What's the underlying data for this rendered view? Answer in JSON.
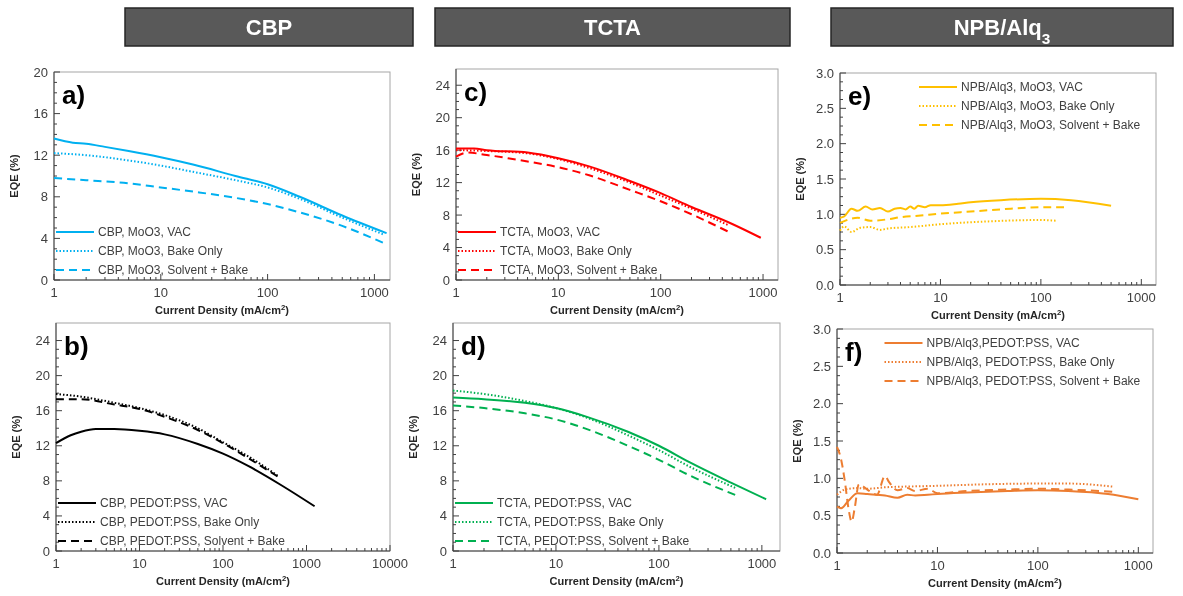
{
  "chart_data": [
    {
      "type": "line",
      "title": "CBP",
      "annotations": [
        "a)"
      ],
      "xlabel": "Current Density (mA/cm$^{2}$)",
      "ylabel": "EQE (%)",
      "log": "x",
      "xlim": [
        1,
        1400
      ],
      "xticks": [
        1,
        10,
        100,
        1000
      ],
      "ylim": [
        0,
        20
      ],
      "yticks": [
        0,
        4,
        8,
        12,
        16,
        20
      ],
      "legend": "bottom left",
      "series": [
        {
          "name": "CBP, MoO3, VAC",
          "color": "#00b0f0",
          "line_style": "solid",
          "x": [
            1,
            1.5,
            2,
            3,
            5,
            10,
            20,
            50,
            100,
            200,
            500,
            1300
          ],
          "values": [
            13.6,
            13.2,
            13.1,
            12.8,
            12.4,
            11.8,
            11.1,
            10.0,
            9.2,
            8.0,
            6.2,
            4.5
          ]
        },
        {
          "name": "CBP, MoO3, Bake Only",
          "color": "#00b0f0",
          "line_style": "dotted",
          "x": [
            1,
            2,
            5,
            10,
            20,
            50,
            100,
            200,
            500,
            1200
          ],
          "values": [
            12.2,
            12.0,
            11.5,
            11.0,
            10.4,
            9.6,
            8.9,
            7.8,
            6.0,
            4.4
          ]
        },
        {
          "name": "CBP, MoO3, Solvent + Bake",
          "color": "#00b0f0",
          "line_style": "dashed",
          "x": [
            1,
            2,
            5,
            10,
            20,
            50,
            100,
            200,
            500,
            1200
          ],
          "values": [
            9.8,
            9.6,
            9.3,
            8.9,
            8.5,
            7.9,
            7.3,
            6.5,
            5.2,
            3.6
          ]
        }
      ]
    },
    {
      "type": "line",
      "title": "TCTA",
      "annotations": [
        "c)"
      ],
      "xlabel": "Current Density (mA/cm$^{2}$)",
      "ylabel": "EQE (%)",
      "log": "x",
      "xlim": [
        1,
        1400
      ],
      "xticks": [
        1,
        10,
        100,
        1000
      ],
      "ylim": [
        0,
        26
      ],
      "yticks": [
        0,
        4,
        8,
        12,
        16,
        20,
        24
      ],
      "legend": "bottom left",
      "series": [
        {
          "name": "TCTA, MoO3, VAC",
          "color": "#ff0000",
          "line_style": "solid",
          "x": [
            1,
            1.5,
            2,
            5,
            10,
            20,
            50,
            100,
            200,
            500,
            950
          ],
          "values": [
            16.2,
            16.2,
            16.0,
            15.7,
            15.0,
            14.0,
            12.2,
            10.7,
            9.0,
            6.9,
            5.2
          ]
        },
        {
          "name": "TCTA, MoO3, Bake Only",
          "color": "#ff0000",
          "line_style": "dotted",
          "x": [
            1,
            2,
            5,
            10,
            20,
            50,
            100,
            200,
            450
          ],
          "values": [
            16.0,
            15.9,
            15.6,
            14.9,
            13.8,
            12.0,
            10.4,
            8.8,
            6.8
          ]
        },
        {
          "name": "TCTA, MoO3, Solvent + Bake",
          "color": "#ff0000",
          "line_style": "dashed",
          "x": [
            1,
            1.3,
            2,
            5,
            10,
            20,
            50,
            100,
            200,
            450
          ],
          "values": [
            15.2,
            15.7,
            15.4,
            14.6,
            13.9,
            12.9,
            11.1,
            9.7,
            8.1,
            6.0
          ]
        }
      ]
    },
    {
      "type": "line",
      "title": "NPB/Alq$_{3}$",
      "annotations": [
        "e)"
      ],
      "xlabel": "Current Density (mA/cm$^{2}$)",
      "ylabel": "EQE (%)",
      "log": "x",
      "xlim": [
        1,
        1400
      ],
      "xticks": [
        1,
        10,
        100,
        1000
      ],
      "ylim": [
        0,
        3
      ],
      "yticks": [
        {
          "value": 0,
          "label": "0.0"
        },
        0.5,
        {
          "value": 1,
          "label": "1.0"
        },
        1.5,
        {
          "value": 2,
          "label": "2.0"
        },
        2.5,
        {
          "value": 3,
          "label": "3.0"
        }
      ],
      "legend": "top right",
      "series": [
        {
          "name": "NPB/Alq3, MoO3, VAC",
          "color": "#ffc000",
          "line_style": "solid",
          "x": [
            1,
            1.1,
            1.3,
            1.5,
            1.8,
            2.1,
            2.5,
            3,
            3.5,
            4,
            4.5,
            5,
            5.5,
            6,
            7,
            8,
            10,
            15,
            20,
            40,
            100,
            200,
            500
          ],
          "values": [
            0.95,
            0.97,
            1.08,
            1.05,
            1.11,
            1.07,
            1.09,
            1.04,
            1.08,
            1.09,
            1.07,
            1.11,
            1.08,
            1.12,
            1.1,
            1.13,
            1.13,
            1.15,
            1.17,
            1.2,
            1.22,
            1.2,
            1.12
          ]
        },
        {
          "name": "NPB/Alq3, MoO3, Bake Only",
          "color": "#ffc000",
          "line_style": "dotted",
          "x": [
            1,
            1.1,
            1.3,
            1.6,
            2,
            2.5,
            3,
            5,
            10,
            30,
            100,
            140
          ],
          "values": [
            0.77,
            0.83,
            0.75,
            0.81,
            0.82,
            0.78,
            0.8,
            0.82,
            0.86,
            0.9,
            0.92,
            0.91
          ]
        },
        {
          "name": "NPB/Alq3, MoO3, Solvent + Bake",
          "color": "#ffc000",
          "line_style": "dashed",
          "x": [
            1,
            1.5,
            2,
            3,
            4,
            6,
            10,
            20,
            40,
            100,
            170
          ],
          "values": [
            0.88,
            0.95,
            0.91,
            0.93,
            0.96,
            0.98,
            1.01,
            1.04,
            1.07,
            1.1,
            1.1
          ]
        }
      ]
    },
    {
      "type": "line",
      "annotations": [
        "b)"
      ],
      "xlabel": "Current Density (mA/cm$^{2}$)",
      "ylabel": "EQE (%)",
      "log": "x",
      "xlim": [
        1,
        10000
      ],
      "xticks": [
        1,
        10,
        100,
        1000,
        10000
      ],
      "ylim": [
        0,
        26
      ],
      "yticks": [
        0,
        4,
        8,
        12,
        16,
        20,
        24
      ],
      "legend": "bottom left",
      "series": [
        {
          "name": "CBP, PEDOT:PSS, VAC",
          "color": "#000000",
          "line_style": "solid",
          "x": [
            1,
            1.5,
            2,
            3,
            5,
            10,
            20,
            50,
            100,
            200,
            500,
            1250
          ],
          "values": [
            12.3,
            13.2,
            13.6,
            13.9,
            13.9,
            13.7,
            13.3,
            12.2,
            11.1,
            9.7,
            7.5,
            5.1
          ]
        },
        {
          "name": "CBP, PEDOT:PSS, Bake Only",
          "color": "#000000",
          "line_style": "dotted",
          "x": [
            1,
            2,
            5,
            10,
            20,
            50,
            100,
            200,
            450
          ],
          "values": [
            17.9,
            17.6,
            16.9,
            16.3,
            15.5,
            14.0,
            12.4,
            10.8,
            8.6
          ]
        },
        {
          "name": "CBP, PEDOT:PSS, Solvent + Bake",
          "color": "#000000",
          "line_style": "dashed",
          "x": [
            1,
            2,
            5,
            10,
            20,
            50,
            100,
            200,
            450
          ],
          "values": [
            17.3,
            17.3,
            16.7,
            16.2,
            15.3,
            13.8,
            12.3,
            10.6,
            8.5
          ]
        }
      ]
    },
    {
      "type": "line",
      "annotations": [
        "d)"
      ],
      "xlabel": "Current Density (mA/cm$^{2}$)",
      "ylabel": "EQE (%)",
      "log": "x",
      "xlim": [
        1,
        1500
      ],
      "xticks": [
        1,
        10,
        100,
        1000
      ],
      "ylim": [
        0,
        26
      ],
      "yticks": [
        0,
        4,
        8,
        12,
        16,
        20,
        24
      ],
      "legend": "bottom left",
      "series": [
        {
          "name": "TCTA, PEDOT:PSS, VAC",
          "color": "#00b050",
          "line_style": "solid",
          "x": [
            1,
            2,
            5,
            10,
            20,
            50,
            100,
            200,
            500,
            1100
          ],
          "values": [
            17.5,
            17.3,
            16.9,
            16.3,
            15.3,
            13.6,
            12.0,
            10.1,
            7.8,
            5.9
          ]
        },
        {
          "name": "TCTA, PEDOT:PSS, Bake Only",
          "color": "#00b050",
          "line_style": "dotted",
          "x": [
            1,
            2,
            5,
            10,
            20,
            50,
            100,
            200,
            550
          ],
          "values": [
            18.3,
            17.9,
            17.1,
            16.3,
            15.2,
            13.2,
            11.5,
            9.6,
            7.2
          ]
        },
        {
          "name": "TCTA, PEDOT:PSS, Solvent + Bake",
          "color": "#00b050",
          "line_style": "dashed",
          "x": [
            1,
            2,
            5,
            10,
            20,
            50,
            100,
            200,
            550
          ],
          "values": [
            16.6,
            16.3,
            15.7,
            15.0,
            13.9,
            12.0,
            10.4,
            8.6,
            6.4
          ]
        }
      ]
    },
    {
      "type": "line",
      "annotations": [
        "f)"
      ],
      "xlabel": "Current Density (mA/cm$^{2}$)",
      "ylabel": "EQE (%)",
      "log": "x",
      "xlim": [
        1,
        1400
      ],
      "xticks": [
        1,
        10,
        100,
        1000
      ],
      "ylim": [
        0,
        3
      ],
      "yticks": [
        {
          "value": 0,
          "label": "0.0"
        },
        0.5,
        {
          "value": 1,
          "label": "1.0"
        },
        1.5,
        {
          "value": 2,
          "label": "2.0"
        },
        2.5,
        {
          "value": 3,
          "label": "3.0"
        }
      ],
      "legend": "top right",
      "series": [
        {
          "name": "NPB/Alq3,PEDOT:PSS, VAC",
          "color": "#ed7d31",
          "line_style": "solid",
          "x": [
            1,
            1.1,
            1.3,
            1.6,
            2,
            3,
            4,
            5,
            6,
            8,
            10,
            20,
            50,
            100,
            200,
            500,
            1000
          ],
          "values": [
            0.62,
            0.6,
            0.7,
            0.8,
            0.79,
            0.77,
            0.74,
            0.78,
            0.77,
            0.78,
            0.79,
            0.81,
            0.83,
            0.84,
            0.83,
            0.79,
            0.72
          ]
        },
        {
          "name": "NPB/Alq3, PEDOT:PSS, Bake Only",
          "color": "#ed7d31",
          "line_style": "dotted",
          "x": [
            1,
            1.2,
            1.6,
            2,
            3,
            5,
            10,
            30,
            100,
            200,
            550
          ],
          "values": [
            0.78,
            0.85,
            0.87,
            0.86,
            0.88,
            0.89,
            0.9,
            0.92,
            0.93,
            0.93,
            0.89
          ]
        },
        {
          "name": "NPB/Alq3, PEDOT:PSS, Solvent + Bake",
          "color": "#ed7d31",
          "line_style": "dashed",
          "x": [
            1,
            1.1,
            1.2,
            1.3,
            1.4,
            1.5,
            1.65,
            2,
            2.5,
            3,
            3.3,
            4,
            5,
            6,
            8,
            10,
            20,
            50,
            100,
            200,
            550
          ],
          "values": [
            1.42,
            1.25,
            0.95,
            0.6,
            0.42,
            0.6,
            0.92,
            0.85,
            0.78,
            1.03,
            0.95,
            0.84,
            0.87,
            0.83,
            0.86,
            0.8,
            0.83,
            0.85,
            0.86,
            0.85,
            0.82
          ]
        }
      ]
    }
  ]
}
